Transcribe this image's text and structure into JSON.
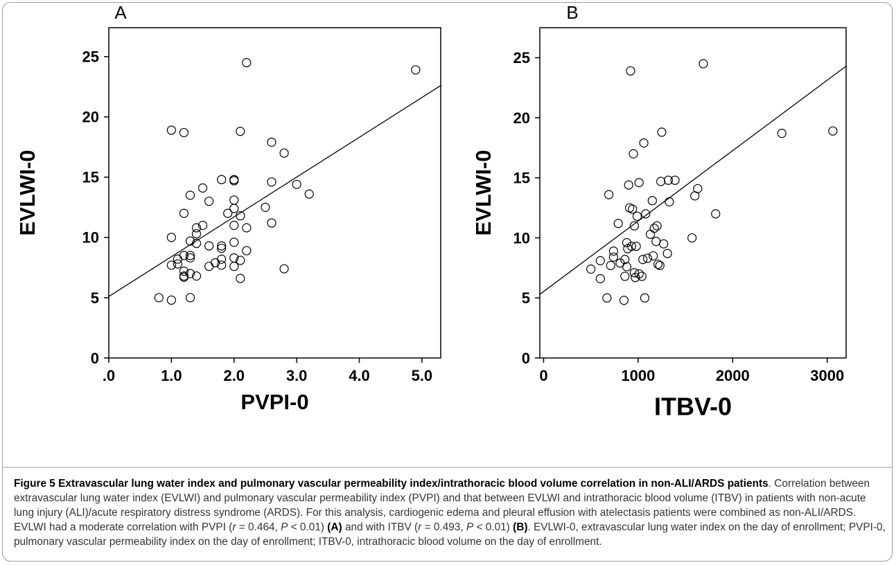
{
  "chart_data": [
    {
      "type": "scatter",
      "panel_label": "A",
      "xlabel": "PVPI-0",
      "ylabel": "EVLWI-0",
      "color": "#000000",
      "x": [
        0.8,
        1.0,
        1.0,
        1.0,
        1.0,
        1.1,
        1.1,
        1.2,
        1.2,
        1.2,
        1.2,
        1.2,
        1.2,
        1.3,
        1.3,
        1.3,
        1.3,
        1.3,
        1.3,
        1.4,
        1.4,
        1.4,
        1.4,
        1.5,
        1.5,
        1.6,
        1.6,
        1.6,
        1.7,
        1.8,
        1.8,
        1.8,
        1.8,
        1.8,
        1.9,
        2.0,
        2.0,
        2.0,
        2.0,
        2.0,
        2.0,
        2.0,
        2.0,
        2.1,
        2.1,
        2.1,
        2.1,
        2.2,
        2.2,
        2.2,
        2.5,
        2.6,
        2.6,
        2.6,
        2.8,
        2.8,
        3.0,
        3.2,
        4.9
      ],
      "y": [
        5.0,
        4.8,
        7.7,
        10.0,
        18.9,
        8.2,
        7.8,
        6.7,
        6.8,
        7.2,
        8.5,
        12.0,
        18.7,
        5.0,
        8.3,
        8.5,
        9.7,
        13.5,
        7.0,
        6.8,
        9.5,
        10.3,
        10.8,
        11.0,
        14.1,
        13.0,
        9.3,
        7.6,
        7.9,
        7.7,
        8.2,
        9.3,
        9.1,
        14.8,
        12.0,
        7.6,
        8.3,
        9.6,
        11.0,
        12.4,
        13.1,
        14.7,
        14.8,
        6.6,
        8.1,
        11.8,
        18.8,
        8.9,
        10.8,
        24.5,
        12.5,
        11.2,
        14.6,
        17.9,
        7.4,
        17.0,
        14.4,
        13.6,
        23.9
      ],
      "fit": {
        "x": [
          0,
          5.3
        ],
        "y": [
          5.1,
          22.6
        ]
      },
      "xlim": [
        0,
        5.3
      ],
      "ylim": [
        0,
        27.4
      ],
      "xticks": [
        {
          "value": 0,
          "label": ".0"
        },
        {
          "value": 1,
          "label": "1.0"
        },
        {
          "value": 2,
          "label": "2.0"
        },
        {
          "value": 3,
          "label": "3.0"
        },
        {
          "value": 4,
          "label": "4.0"
        },
        {
          "value": 5,
          "label": "5.0"
        }
      ],
      "yticks": [
        0,
        5,
        10,
        15,
        20,
        25
      ]
    },
    {
      "type": "scatter",
      "panel_label": "B",
      "xlabel": "ITBV-0",
      "ylabel": "EVLWI-0",
      "color": "#000000",
      "x": [
        500,
        600,
        600,
        670,
        690,
        710,
        740,
        740,
        790,
        810,
        850,
        860,
        860,
        880,
        880,
        890,
        900,
        910,
        920,
        930,
        940,
        950,
        960,
        960,
        970,
        980,
        990,
        1010,
        1010,
        1040,
        1050,
        1060,
        1070,
        1080,
        1100,
        1130,
        1150,
        1160,
        1170,
        1190,
        1200,
        1210,
        1230,
        1240,
        1250,
        1270,
        1310,
        1320,
        1330,
        1390,
        1570,
        1600,
        1630,
        1690,
        1820,
        2520,
        3060
      ],
      "y": [
        7.4,
        8.1,
        6.6,
        5.0,
        13.6,
        7.7,
        8.4,
        8.9,
        11.2,
        7.9,
        4.8,
        6.8,
        8.2,
        7.6,
        9.6,
        9.1,
        14.4,
        12.5,
        23.9,
        9.3,
        12.4,
        17.0,
        11.0,
        7.1,
        6.7,
        9.3,
        11.8,
        7.0,
        14.6,
        6.8,
        8.2,
        17.9,
        5.0,
        12.0,
        8.3,
        10.3,
        13.1,
        8.5,
        10.8,
        9.7,
        11.0,
        7.8,
        7.7,
        14.7,
        18.8,
        9.5,
        8.7,
        14.8,
        13.0,
        14.8,
        10.0,
        13.5,
        14.1,
        24.5,
        12.0,
        18.7,
        18.9
      ],
      "fit": {
        "x": [
          -40,
          3200
        ],
        "y": [
          5.3,
          24.3
        ]
      },
      "xlim": [
        -40,
        3200
      ],
      "ylim": [
        0,
        27.5
      ],
      "xticks": [
        0,
        1000,
        2000,
        3000
      ],
      "yticks": [
        0,
        5,
        10,
        15,
        20,
        25
      ]
    }
  ],
  "caption": {
    "title": "Figure 5 Extravascular lung water index and pulmonary vascular permeability index/intrathoracic blood volume correlation in non-ALI/ARDS patients",
    "parts": [
      ". Correlation between extravascular lung water index (EVLWI) and pulmonary vascular permeability index (PVPI) and that between EVLWI and intrathoracic blood volume (ITBV) in patients with non-acute lung injury (ALI)/acute respiratory distress syndrome (ARDS). For this analysis, cardiogenic edema and pleural effusion with atelectasis patients were combined as non-ALI/ARDS. EVLWI had a moderate correlation with PVPI (",
      "r",
      " = 0.464, ",
      "P",
      " < 0.01) ",
      "(A)",
      " and with ITBV (",
      "r",
      " = 0.493, ",
      "P",
      " < 0.01) ",
      "(B)",
      ". EVLWI-0, extravascular lung water index on the day of enrollment; PVPI-0, pulmonary vascular permeability index on the day of enrollment; ITBV-0, intrathoracic blood volume on the day of enrollment."
    ]
  }
}
